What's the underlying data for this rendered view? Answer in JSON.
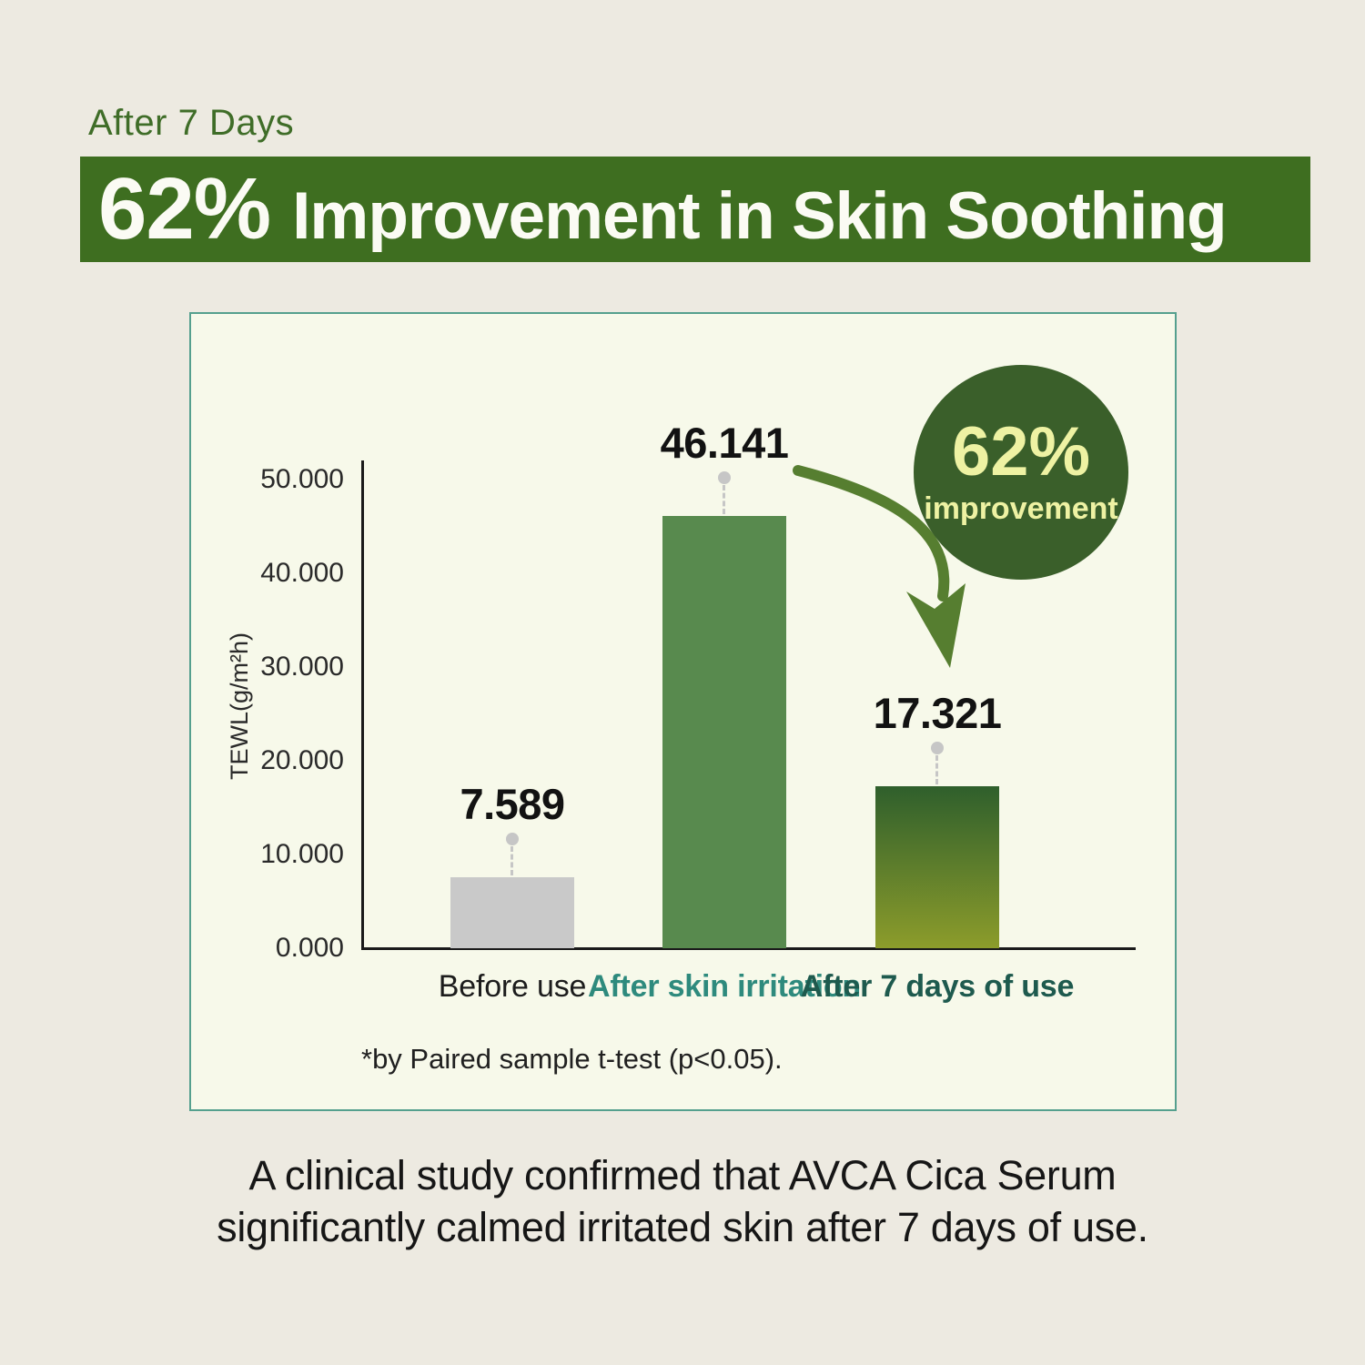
{
  "colors": {
    "page-bg": "#edeae1",
    "eyebrow-green": "#3f6d28",
    "banner-green": "#3e6e20",
    "banner-text": "#fbfbf4",
    "panel-bg": "#f7f9ea",
    "panel-border": "#55a08e",
    "axis": "#1a1a1a",
    "connector-gray": "#c6c6c6",
    "badge-green": "#3a5f2a",
    "badge-text": "#eef2a3",
    "arrow-green": "#567e30",
    "text-dark": "#161616"
  },
  "header": {
    "eyebrow": "After 7 Days",
    "banner_highlight": "62%",
    "banner_rest": "Improvement in Skin Soothing"
  },
  "badge": {
    "percent": "62%",
    "label": "improvement"
  },
  "chart_data": {
    "type": "bar",
    "title": "",
    "ylabel": "TEWL(g/m²h)",
    "ylim": [
      0,
      50
    ],
    "ytick_step": 10,
    "yticks": [
      "0.000",
      "10.000",
      "20.000",
      "30.000",
      "40.000",
      "50.000"
    ],
    "grid": false,
    "legend": false,
    "bars": [
      {
        "category": "Before use",
        "value": 7.589,
        "value_label": "7.589",
        "color_top": "#c9c9c9",
        "color_bottom": "#c9c9c9",
        "category_color": "#1c1c1c",
        "category_bold": false
      },
      {
        "category": "After skin irritation",
        "value": 46.141,
        "value_label": "46.141",
        "color_top": "#588a4e",
        "color_bottom": "#588a4e",
        "category_color": "#2e8a7d",
        "category_bold": true
      },
      {
        "category": "After 7 days of use",
        "value": 17.321,
        "value_label": "17.321",
        "color_top": "#2f5f2c",
        "color_bottom": "#8c9c2b",
        "category_color": "#1e5a4e",
        "category_bold": true
      }
    ],
    "annotation": {
      "percent": "62%",
      "label": "improvement"
    },
    "footnote": "*by Paired sample t-test (p<0.05)."
  },
  "caption": {
    "line1": "A clinical study confirmed that AVCA Cica Serum",
    "line2": "significantly calmed irritated skin after 7 days of use."
  }
}
